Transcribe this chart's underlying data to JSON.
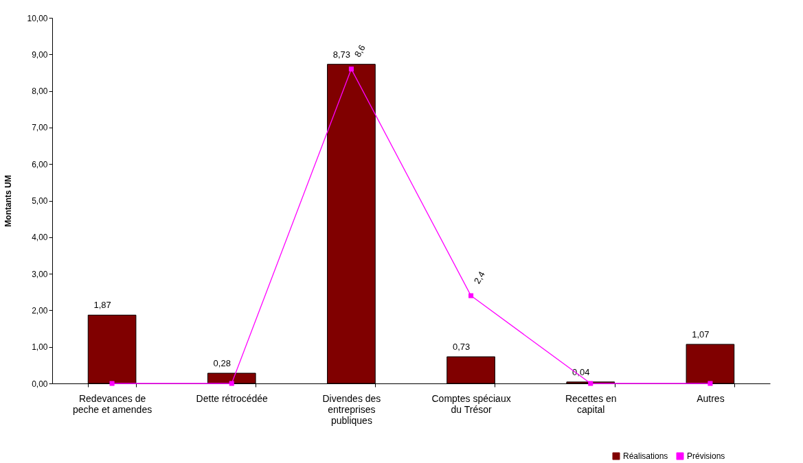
{
  "chart_data": {
    "type": "bar",
    "ylabel": "Montants UM",
    "categories": [
      "Redevances de peche et amendes",
      "Dette rétrocédée",
      "Divendes des entreprises publiques",
      "Comptes spéciaux du Trésor",
      "Recettes en capital",
      "Autres"
    ],
    "series": [
      {
        "name": "Réalisations",
        "color": "#800000",
        "values": [
          1.87,
          0.28,
          8.73,
          0.73,
          0.04,
          1.07
        ],
        "value_labels": [
          "1,87",
          "0,28",
          "8,73",
          "0,73",
          "0,04",
          "1,07"
        ]
      },
      {
        "name": "Prévisions",
        "type": "line",
        "color": "#ff00ff",
        "marker": "square",
        "values": [
          0,
          0,
          8.6,
          2.4,
          0,
          0
        ],
        "value_labels": [
          null,
          null,
          "8,6",
          "2,4",
          null,
          null
        ]
      }
    ],
    "ylim": [
      0,
      10
    ],
    "yticks": [
      {
        "value": 0,
        "label": "0,00"
      },
      {
        "value": 1,
        "label": "1,00"
      },
      {
        "value": 2,
        "label": "2,00"
      },
      {
        "value": 3,
        "label": "3,00"
      },
      {
        "value": 4,
        "label": "4,00"
      },
      {
        "value": 5,
        "label": "5,00"
      },
      {
        "value": 6,
        "label": "6,00"
      },
      {
        "value": 7,
        "label": "7,00"
      },
      {
        "value": 8,
        "label": "8,00"
      },
      {
        "value": 9,
        "label": "9,00"
      },
      {
        "value": 10,
        "label": "10,00"
      }
    ],
    "grid": false,
    "legend": "bottom right"
  }
}
